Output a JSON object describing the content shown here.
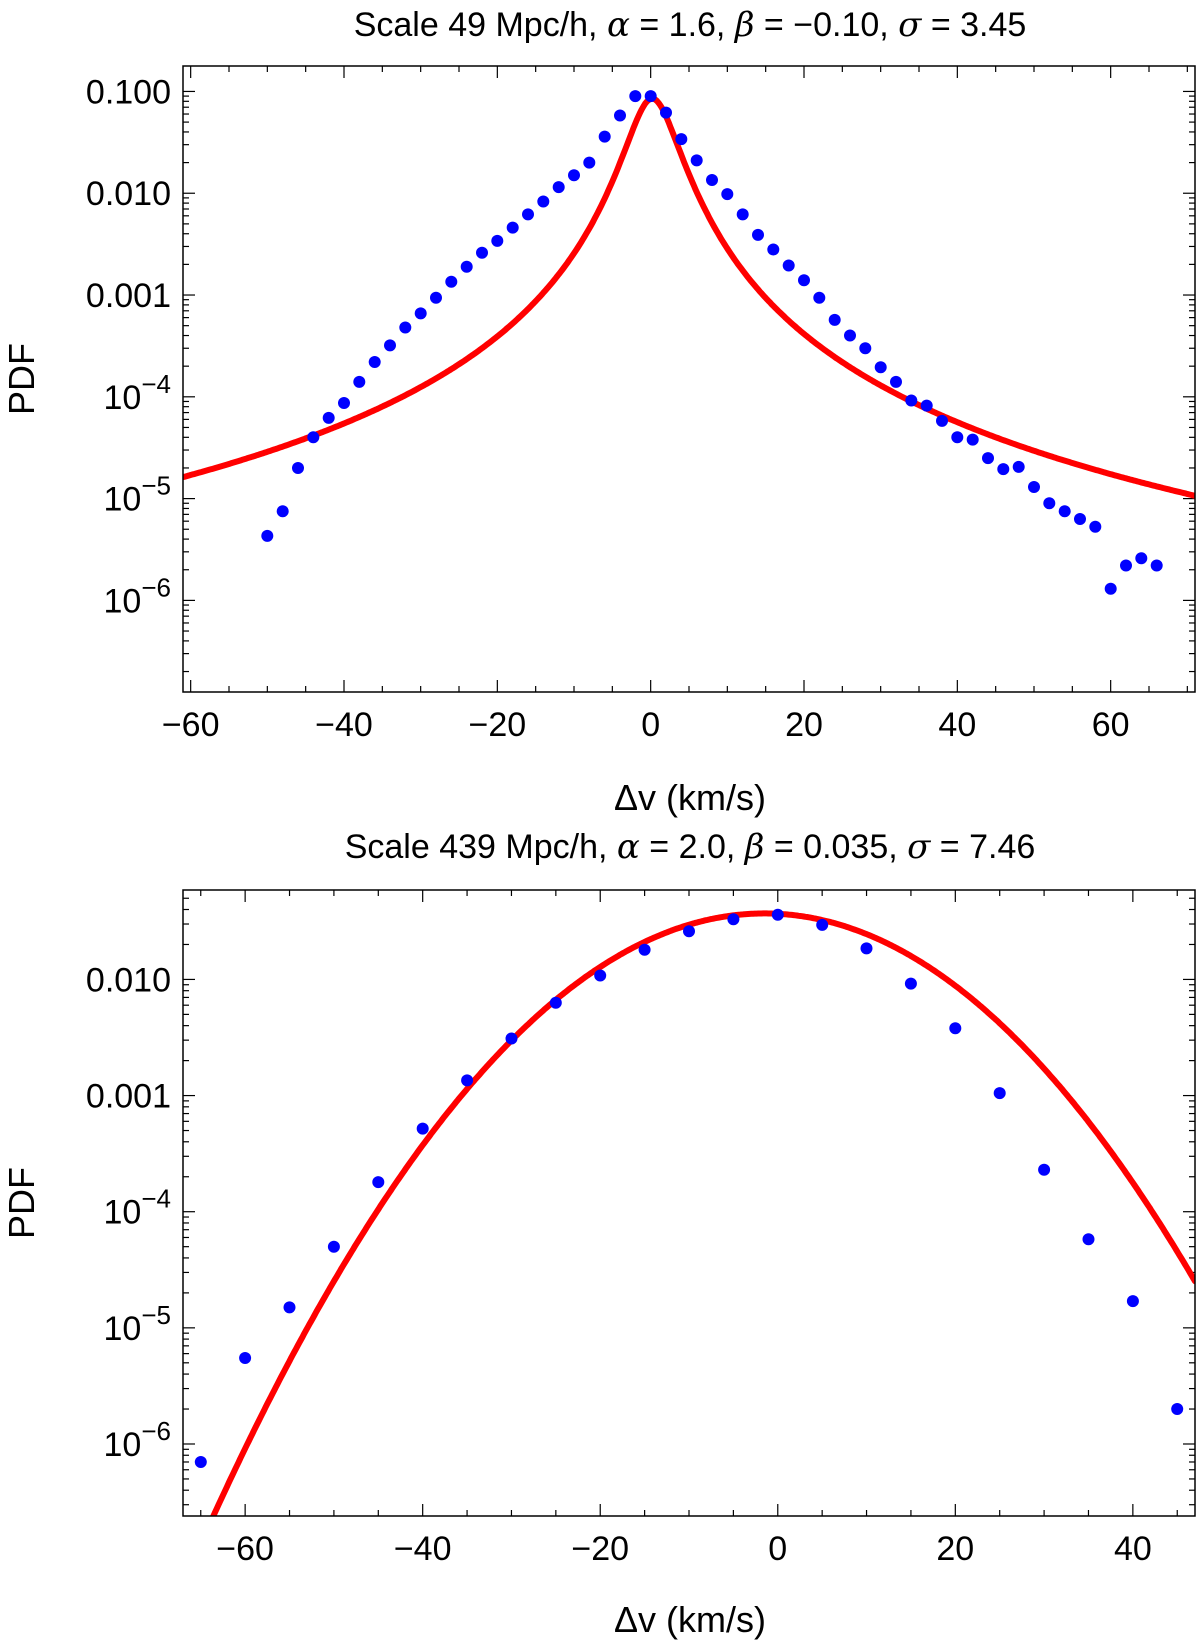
{
  "chart_data": [
    {
      "type": "scatter",
      "title": "Scale 49 Mpc/h, α = 1.6, β = −0.10, σ = 3.45",
      "title_parts": {
        "scale_text": "Scale 49 Mpc/h, ",
        "alpha_sym": "α",
        "alpha_val": " = 1.6, ",
        "beta_sym": "β",
        "beta_val": " = −0.10, ",
        "sigma_sym": "σ",
        "sigma_val": " = 3.45"
      },
      "xlabel": "Δv (km/s)",
      "ylabel": "PDF",
      "xlim": [
        -61,
        71
      ],
      "ylim_log10": [
        -6.9,
        -0.75
      ],
      "y_scale": "log",
      "x_ticks": [
        -60,
        -40,
        -20,
        0,
        20,
        40,
        60
      ],
      "x_tick_labels": [
        "−60",
        "−40",
        "−20",
        "0",
        "20",
        "40",
        "60"
      ],
      "y_tick_labels": [
        {
          "pow": -1,
          "text": "0.100"
        },
        {
          "pow": -2,
          "text": "0.010"
        },
        {
          "pow": -3,
          "text": "0.001"
        },
        {
          "pow": -4,
          "base": "10",
          "exp": "−4"
        },
        {
          "pow": -5,
          "base": "10",
          "exp": "−5"
        },
        {
          "pow": -6,
          "base": "10",
          "exp": "−6"
        }
      ],
      "fit_style": "lorentzian",
      "fit": {
        "peak": 0.085,
        "x0": 0.2,
        "scale": 3.2,
        "exponent": 1.45
      },
      "series": [
        {
          "x": [
            -50,
            -48,
            -46,
            -44,
            -42,
            -40,
            -38,
            -36,
            -34,
            -32,
            -30,
            -28,
            -26,
            -24,
            -22,
            -20,
            -18,
            -16,
            -14,
            -12,
            -10,
            -8,
            -6,
            -4,
            -2,
            0,
            2,
            4,
            6,
            8,
            10,
            12,
            14,
            16,
            18,
            20,
            22,
            24,
            26,
            28,
            30,
            32,
            34,
            36,
            38,
            40,
            42,
            44,
            46,
            48,
            50,
            52,
            54,
            56,
            58,
            60,
            62,
            64,
            66
          ],
          "y": [
            4.3e-06,
            7.5e-06,
            2e-05,
            4e-05,
            6.2e-05,
            8.7e-05,
            0.00014,
            0.00022,
            0.00032,
            0.00048,
            0.00066,
            0.00094,
            0.00135,
            0.0019,
            0.0026,
            0.0034,
            0.0046,
            0.0062,
            0.0083,
            0.0115,
            0.015,
            0.02,
            0.036,
            0.058,
            0.09,
            0.09,
            0.062,
            0.034,
            0.021,
            0.0135,
            0.0098,
            0.0062,
            0.0039,
            0.0028,
            0.00195,
            0.0014,
            0.00094,
            0.00057,
            0.0004,
            0.0003,
            0.000195,
            0.00014,
            9.2e-05,
            8.2e-05,
            5.8e-05,
            4e-05,
            3.8e-05,
            2.5e-05,
            1.95e-05,
            2.05e-05,
            1.3e-05,
            9e-06,
            7.5e-06,
            6.3e-06,
            5.3e-06,
            1.3e-06,
            2.2e-06,
            2.6e-06,
            2.2e-06
          ]
        }
      ]
    },
    {
      "type": "scatter",
      "title": "Scale 439 Mpc/h, α = 2.0, β = 0.035, σ = 7.46",
      "title_parts": {
        "scale_text": "Scale 439 Mpc/h, ",
        "alpha_sym": "α",
        "alpha_val": " = 2.0, ",
        "beta_sym": "β",
        "beta_val": " = 0.035, ",
        "sigma_sym": "σ",
        "sigma_val": " = 7.46"
      },
      "xlabel": "Δv (km/s)",
      "ylabel": "PDF",
      "xlim": [
        -67,
        47
      ],
      "ylim_log10": [
        -6.62,
        -1.23
      ],
      "y_scale": "log",
      "x_ticks": [
        -60,
        -40,
        -20,
        0,
        20,
        40
      ],
      "x_tick_labels": [
        "−60",
        "−40",
        "−20",
        "0",
        "20",
        "40"
      ],
      "y_tick_labels": [
        {
          "pow": -2,
          "text": "0.010"
        },
        {
          "pow": -3,
          "text": "0.001"
        },
        {
          "pow": -4,
          "base": "10",
          "exp": "−4"
        },
        {
          "pow": -5,
          "base": "10",
          "exp": "−5"
        },
        {
          "pow": -6,
          "base": "10",
          "exp": "−6"
        }
      ],
      "fit_style": "gaussian",
      "fit": {
        "peak": 0.037,
        "x0": -1.5,
        "width": 12.7
      },
      "series": [
        {
          "x": [
            -65,
            -60,
            -55,
            -50,
            -45,
            -40,
            -35,
            -30,
            -25,
            -20,
            -15,
            -10,
            -5,
            0,
            5,
            10,
            15,
            20,
            25,
            30,
            35,
            40,
            45
          ],
          "y": [
            7e-07,
            5.5e-06,
            1.5e-05,
            5e-05,
            0.00018,
            0.00052,
            0.00135,
            0.0031,
            0.0063,
            0.0108,
            0.018,
            0.026,
            0.033,
            0.036,
            0.0295,
            0.0185,
            0.0092,
            0.0038,
            0.00105,
            0.00023,
            5.8e-05,
            1.7e-05,
            2e-06
          ]
        }
      ]
    }
  ]
}
